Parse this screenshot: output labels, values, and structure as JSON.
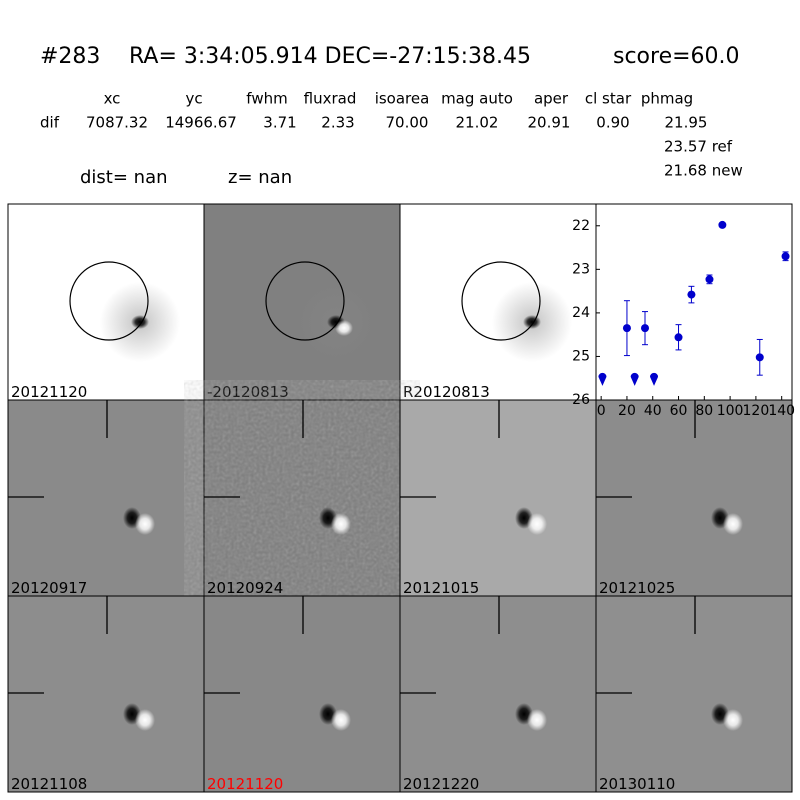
{
  "header": {
    "id": "#283",
    "coords": "RA= 3:34:05.914 DEC=-27:15:38.45",
    "score": "score=60.0"
  },
  "table": {
    "columns": [
      "xc",
      "yc",
      "fwhm",
      "fluxrad",
      "isoarea",
      "mag auto",
      "aper",
      "cl star",
      "phmag"
    ],
    "row_label": "dif",
    "values": [
      "7087.32",
      "14966.67",
      "3.71",
      "2.33",
      "70.00",
      "21.02",
      "20.91",
      "0.90",
      "21.95"
    ],
    "ref": "23.57 ref",
    "new": "21.68 new"
  },
  "dist": "dist=   nan",
  "z": "z=   nan",
  "panels": [
    {
      "label": "20121120"
    },
    {
      "label": "-20120813"
    },
    {
      "label": "R20120813"
    },
    {
      "label": "20120917"
    },
    {
      "label": "20120924"
    },
    {
      "label": "20121015"
    },
    {
      "label": "20121025"
    },
    {
      "label": "20121108"
    },
    {
      "label": "20121120"
    },
    {
      "label": "20121220"
    },
    {
      "label": "20130110"
    }
  ],
  "chart_data": {
    "type": "scatter",
    "color": "#0000cc",
    "x": [
      20,
      34,
      60,
      70,
      84,
      94,
      123,
      143
    ],
    "values": [
      24.35,
      24.35,
      24.56,
      23.58,
      23.23,
      21.98,
      25.02,
      22.7
    ],
    "errors": [
      0.63,
      0.38,
      0.29,
      0.19,
      0.1,
      0,
      0.41,
      0.1
    ],
    "limit_x": [
      1,
      26,
      41
    ],
    "limit_values": [
      25.56,
      25.56,
      25.56
    ],
    "xlim": [
      -4,
      148
    ],
    "ylim": [
      26,
      21.5
    ],
    "xticks": [
      0,
      20,
      40,
      60,
      80,
      100,
      120,
      140
    ],
    "yticks": [
      22,
      23,
      24,
      25,
      26
    ]
  }
}
